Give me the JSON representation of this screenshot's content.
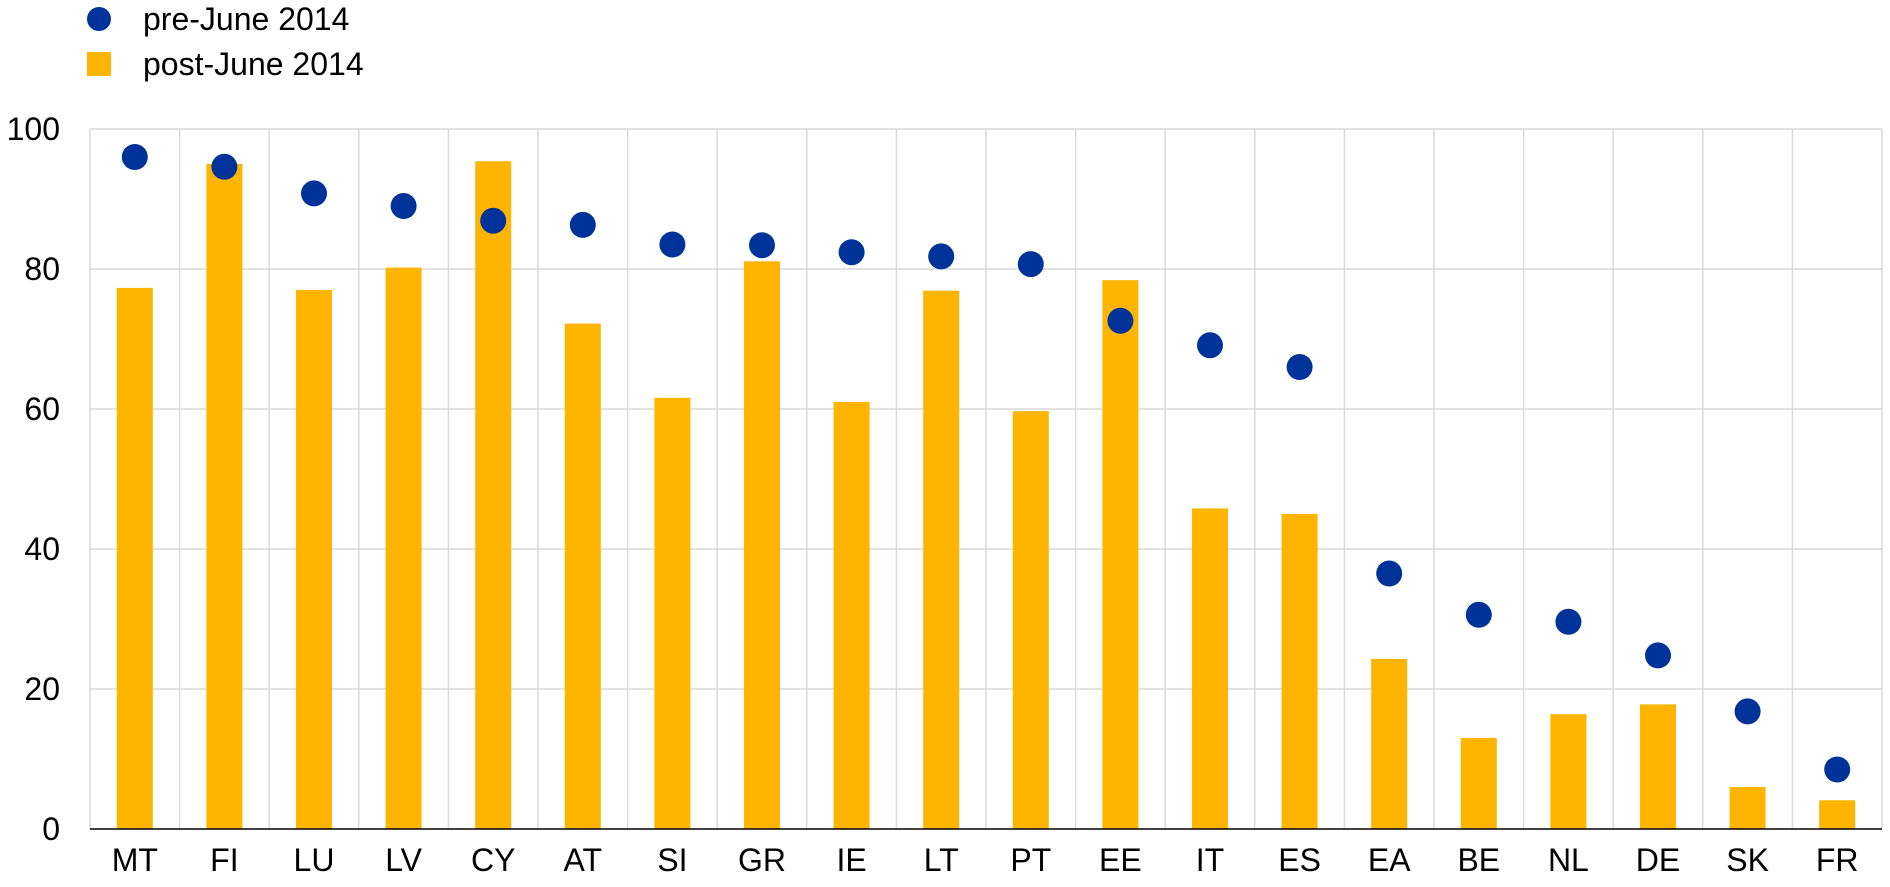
{
  "legend": {
    "items": [
      {
        "label": "pre-June 2014",
        "shape": "circle",
        "color": "#003399"
      },
      {
        "label": "post-June 2014",
        "shape": "square",
        "color": "#ffb400"
      }
    ]
  },
  "chart_data": {
    "type": "bar",
    "title": "",
    "xlabel": "",
    "ylabel": "",
    "ylim": [
      0,
      100
    ],
    "yticks": [
      0,
      20,
      40,
      60,
      80,
      100
    ],
    "grid": true,
    "legend_position": "top-left",
    "categories": [
      "MT",
      "FI",
      "LU",
      "LV",
      "CY",
      "AT",
      "SI",
      "GR",
      "IE",
      "LT",
      "PT",
      "EE",
      "IT",
      "ES",
      "EA",
      "BE",
      "NL",
      "DE",
      "SK",
      "FR"
    ],
    "series": [
      {
        "name": "post-June 2014",
        "type": "bar",
        "color": "#ffb400",
        "values": [
          77.3,
          95.0,
          77.0,
          80.2,
          95.4,
          72.2,
          61.6,
          81.1,
          61.0,
          76.9,
          59.7,
          78.4,
          45.8,
          45.0,
          24.3,
          13.0,
          16.4,
          17.8,
          6.0,
          4.1
        ]
      },
      {
        "name": "pre-June 2014",
        "type": "scatter",
        "color": "#003399",
        "values": [
          96.0,
          94.6,
          90.8,
          89.0,
          86.9,
          86.3,
          83.5,
          83.4,
          82.4,
          81.8,
          80.7,
          72.6,
          69.1,
          66.0,
          36.5,
          30.6,
          29.6,
          24.8,
          16.8,
          8.5
        ]
      }
    ]
  }
}
